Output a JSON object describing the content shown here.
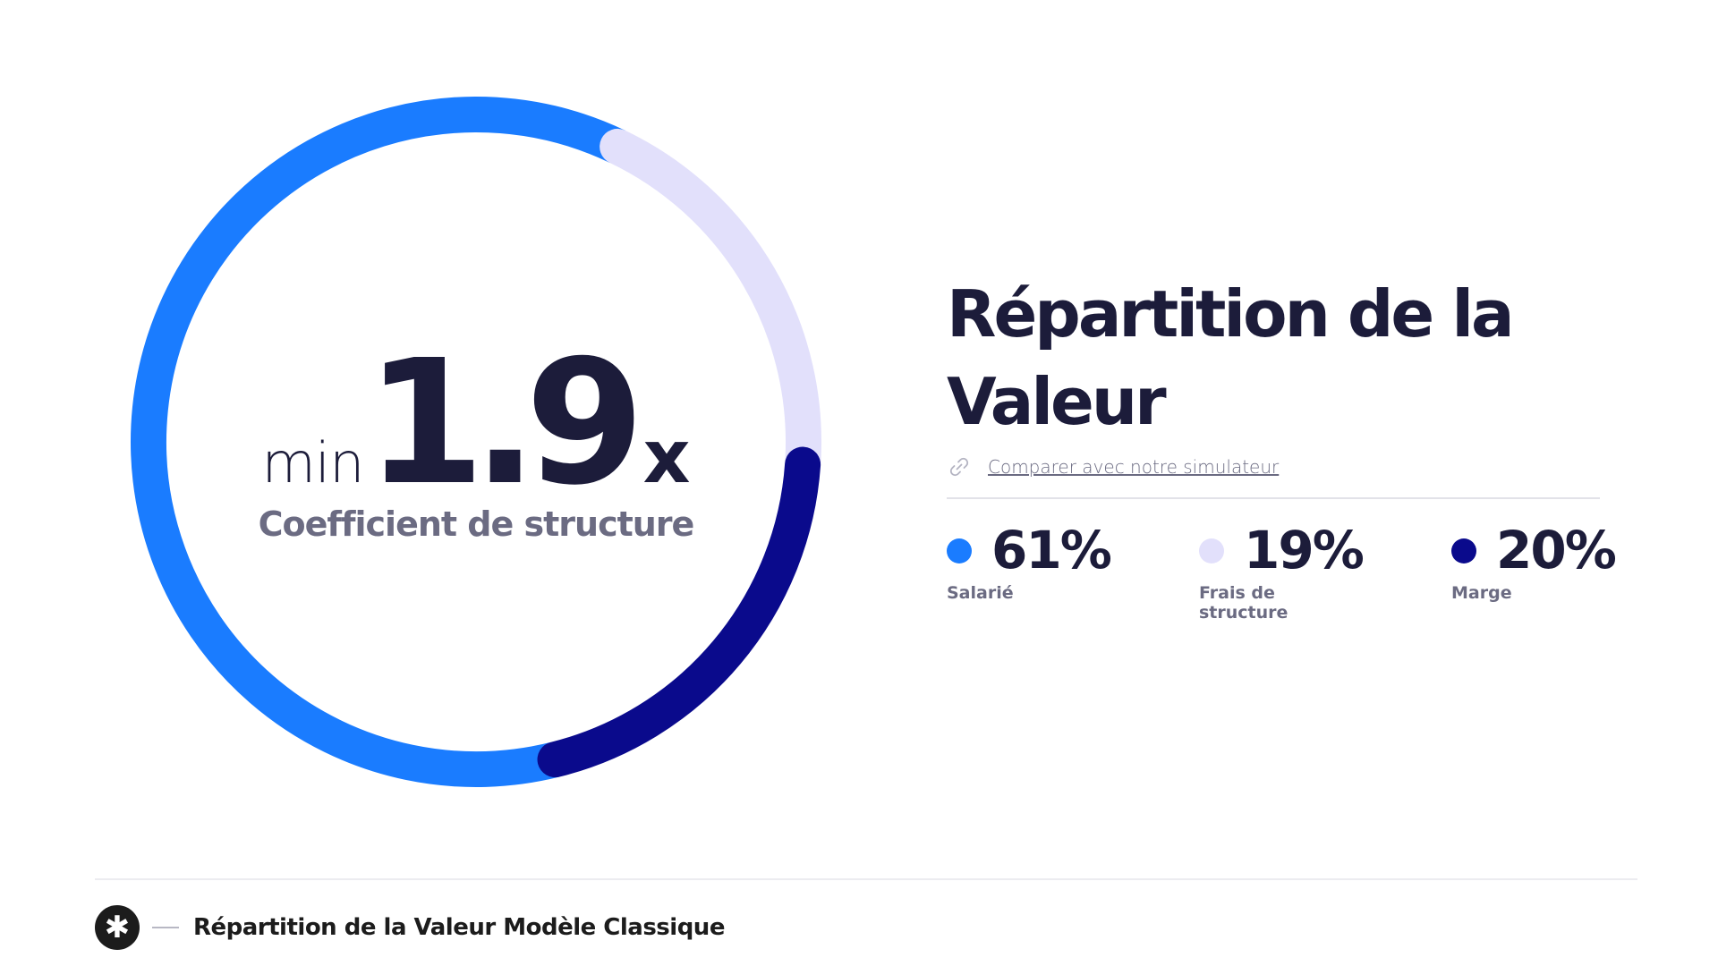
{
  "chart_data": {
    "type": "pie",
    "categories": [
      "Salarié",
      "Frais de structure",
      "Marge"
    ],
    "values": [
      61,
      19,
      20
    ],
    "unit": "%",
    "colors": [
      "#1a7cff",
      "#e2e0fb",
      "#0a0a8c"
    ]
  },
  "coefficient": {
    "prefix": "min",
    "value": "1.9",
    "suffix": "x",
    "label": "Coefficient de structure"
  },
  "title": "Répartition de la Valeur",
  "link": {
    "icon": "link-icon",
    "text": "Comparer avec notre simulateur"
  },
  "legend": [
    {
      "value_text": "61%",
      "label": "Salarié",
      "color": "#1a7cff"
    },
    {
      "value_text": "19%",
      "label": "Frais de structure",
      "color": "#e2e0fb"
    },
    {
      "value_text": "20%",
      "label": "Marge",
      "color": "#0a0a8c"
    }
  ],
  "footer": {
    "icon": "asterisk-icon",
    "badge_glyph": "✱",
    "text": "Répartition de la Valeur Modèle Classique"
  }
}
